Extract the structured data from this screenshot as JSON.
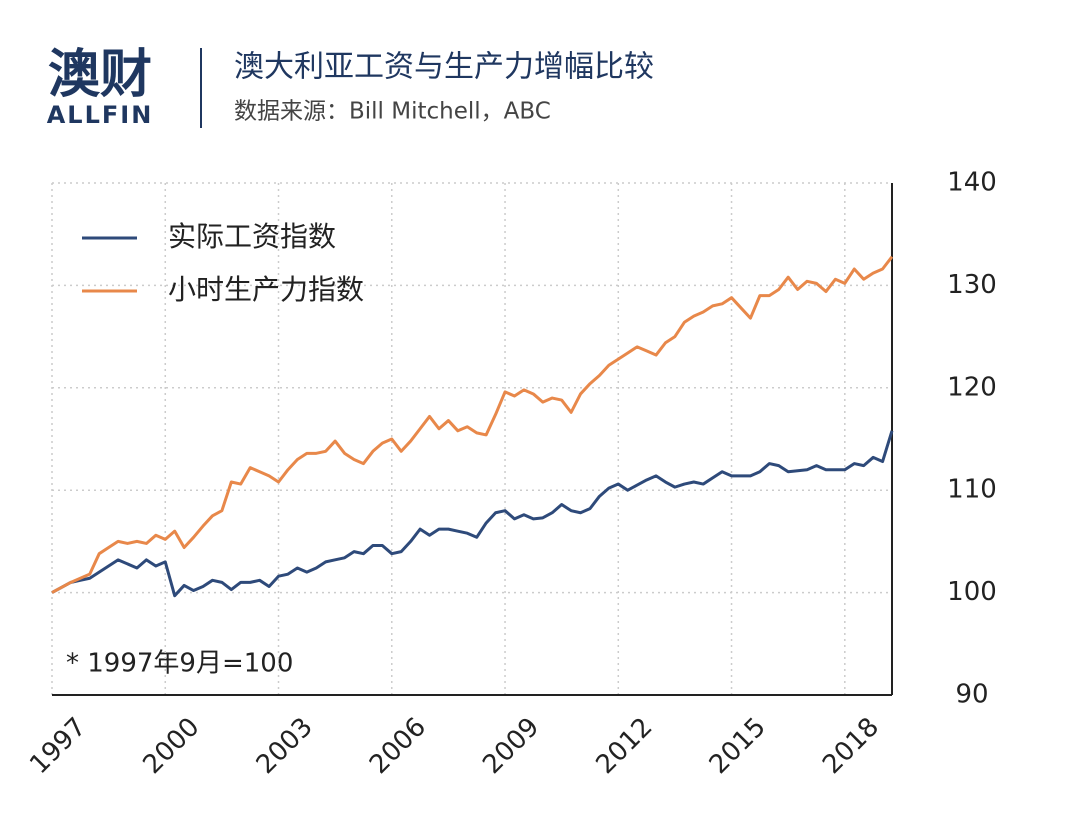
{
  "logo": {
    "name": "澳财",
    "sub": "ALLFIN"
  },
  "chart_data": {
    "type": "line",
    "title": "澳大利亚工资与生产力增幅比较",
    "subtitle": "数据来源：Bill Mitchell，ABC",
    "note": "* 1997年9月=100",
    "categories": [
      "1997",
      null,
      null,
      null,
      null,
      null,
      null,
      null,
      null,
      null,
      null,
      null,
      "2000",
      null,
      null,
      null,
      null,
      null,
      null,
      null,
      null,
      null,
      null,
      null,
      "2003",
      null,
      null,
      null,
      null,
      null,
      null,
      null,
      null,
      null,
      null,
      null,
      "2006",
      null,
      null,
      null,
      null,
      null,
      null,
      null,
      null,
      null,
      null,
      null,
      "2009",
      null,
      null,
      null,
      null,
      null,
      null,
      null,
      null,
      null,
      null,
      null,
      "2012",
      null,
      null,
      null,
      null,
      null,
      null,
      null,
      null,
      null,
      null,
      null,
      "2015",
      null,
      null,
      null,
      null,
      null,
      null,
      null,
      null,
      null,
      null,
      null,
      "2018",
      null,
      null,
      null,
      null,
      null
    ],
    "series": [
      {
        "name": "实际工资指数",
        "color": "#2e4a7a",
        "values": [
          100,
          100.5,
          101,
          101.2,
          101.4,
          102,
          102.6,
          103.2,
          102.8,
          102.4,
          103.2,
          102.6,
          103,
          99.7,
          100.7,
          100.2,
          100.6,
          101.2,
          101,
          100.3,
          101,
          101,
          101.2,
          100.6,
          101.6,
          101.8,
          102.4,
          102,
          102.4,
          103,
          103.2,
          103.4,
          104,
          103.8,
          104.6,
          104.6,
          103.8,
          104,
          105,
          106.2,
          105.6,
          106.2,
          106.2,
          106,
          105.8,
          105.4,
          106.8,
          107.8,
          108,
          107.2,
          107.6,
          107.2,
          107.3,
          107.8,
          108.6,
          108,
          107.8,
          108.2,
          109.4,
          110.2,
          110.6,
          110,
          110.5,
          111,
          111.4,
          110.8,
          110.3,
          110.6,
          110.8,
          110.6,
          111.2,
          111.8,
          111.4,
          111.4,
          111.4,
          111.8,
          112.6,
          112.4,
          111.8,
          111.9,
          112,
          112.4,
          112,
          112,
          112,
          112.6,
          112.4,
          113.2,
          112.8,
          115.8
        ]
      },
      {
        "name": "小时生产力指数",
        "color": "#e8884a",
        "values": [
          100,
          100.5,
          101,
          101.4,
          101.8,
          103.8,
          104.4,
          105,
          104.8,
          105,
          104.8,
          105.6,
          105.2,
          106,
          104.4,
          105.4,
          106.5,
          107.5,
          108,
          110.8,
          110.6,
          112.2,
          111.8,
          111.4,
          110.8,
          112,
          113,
          113.6,
          113.6,
          113.8,
          114.8,
          113.6,
          113,
          112.6,
          113.8,
          114.6,
          115,
          113.8,
          114.8,
          116,
          117.2,
          116,
          116.8,
          115.8,
          116.2,
          115.6,
          115.4,
          117.4,
          119.6,
          119.2,
          119.8,
          119.4,
          118.6,
          119,
          118.8,
          117.6,
          119.4,
          120.4,
          121.2,
          122.2,
          122.8,
          123.4,
          124,
          123.6,
          123.2,
          124.4,
          125,
          126.4,
          127,
          127.4,
          128,
          128.2,
          128.8,
          127.8,
          126.8,
          129,
          129,
          129.6,
          130.8,
          129.6,
          130.4,
          130.2,
          129.4,
          130.6,
          130.2,
          131.6,
          130.6,
          131.2,
          131.6,
          132.8
        ]
      }
    ],
    "ylim": [
      90,
      140
    ],
    "yticks": [
      90,
      100,
      110,
      120,
      130,
      140
    ],
    "grid": true,
    "legend": "top-left"
  }
}
